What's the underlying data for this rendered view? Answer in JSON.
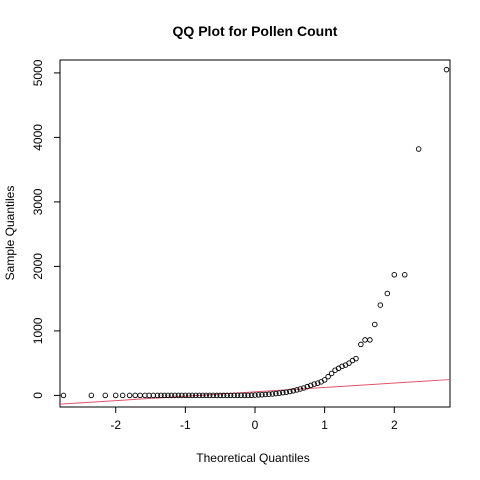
{
  "chart_data": {
    "type": "scatter",
    "title": "QQ Plot for Pollen Count",
    "xlabel": "Theoretical Quantiles",
    "ylabel": "Sample Quantiles",
    "xlim": [
      -2.8,
      2.8
    ],
    "ylim": [
      -180,
      5200
    ],
    "x_ticks": [
      -2,
      -1,
      0,
      1,
      2
    ],
    "y_ticks": [
      0,
      1000,
      2000,
      3000,
      4000,
      5000
    ],
    "grid": false,
    "legend": "none",
    "point_style": "open-circle",
    "reference_line": {
      "color": "#DF536B",
      "intercept": 55,
      "slope": 68
    },
    "points": [
      {
        "x": -2.75,
        "y": 0
      },
      {
        "x": -2.35,
        "y": 0
      },
      {
        "x": -2.15,
        "y": 0
      },
      {
        "x": -2.0,
        "y": 0
      },
      {
        "x": -1.9,
        "y": 0
      },
      {
        "x": -1.8,
        "y": 0
      },
      {
        "x": -1.72,
        "y": 0
      },
      {
        "x": -1.65,
        "y": 0
      },
      {
        "x": -1.58,
        "y": 0
      },
      {
        "x": -1.52,
        "y": 0
      },
      {
        "x": -1.46,
        "y": 0
      },
      {
        "x": -1.4,
        "y": 0
      },
      {
        "x": -1.35,
        "y": 0
      },
      {
        "x": -1.3,
        "y": 0
      },
      {
        "x": -1.25,
        "y": 0
      },
      {
        "x": -1.2,
        "y": 0
      },
      {
        "x": -1.15,
        "y": 0
      },
      {
        "x": -1.1,
        "y": 0
      },
      {
        "x": -1.05,
        "y": 0
      },
      {
        "x": -1.0,
        "y": 0
      },
      {
        "x": -0.95,
        "y": 0
      },
      {
        "x": -0.9,
        "y": 0
      },
      {
        "x": -0.85,
        "y": 0
      },
      {
        "x": -0.8,
        "y": 0
      },
      {
        "x": -0.75,
        "y": 0
      },
      {
        "x": -0.7,
        "y": 0
      },
      {
        "x": -0.65,
        "y": 0
      },
      {
        "x": -0.6,
        "y": 0
      },
      {
        "x": -0.55,
        "y": 0
      },
      {
        "x": -0.5,
        "y": 0
      },
      {
        "x": -0.45,
        "y": 0
      },
      {
        "x": -0.4,
        "y": 0
      },
      {
        "x": -0.35,
        "y": 0
      },
      {
        "x": -0.3,
        "y": 0
      },
      {
        "x": -0.25,
        "y": 0
      },
      {
        "x": -0.2,
        "y": 0
      },
      {
        "x": -0.15,
        "y": 0
      },
      {
        "x": -0.1,
        "y": 0
      },
      {
        "x": -0.05,
        "y": 2
      },
      {
        "x": 0.0,
        "y": 5
      },
      {
        "x": 0.05,
        "y": 8
      },
      {
        "x": 0.1,
        "y": 10
      },
      {
        "x": 0.15,
        "y": 14
      },
      {
        "x": 0.2,
        "y": 18
      },
      {
        "x": 0.25,
        "y": 22
      },
      {
        "x": 0.3,
        "y": 28
      },
      {
        "x": 0.35,
        "y": 35
      },
      {
        "x": 0.4,
        "y": 42
      },
      {
        "x": 0.45,
        "y": 50
      },
      {
        "x": 0.5,
        "y": 60
      },
      {
        "x": 0.55,
        "y": 72
      },
      {
        "x": 0.6,
        "y": 85
      },
      {
        "x": 0.65,
        "y": 100
      },
      {
        "x": 0.7,
        "y": 115
      },
      {
        "x": 0.75,
        "y": 135
      },
      {
        "x": 0.8,
        "y": 155
      },
      {
        "x": 0.85,
        "y": 175
      },
      {
        "x": 0.9,
        "y": 190
      },
      {
        "x": 0.95,
        "y": 210
      },
      {
        "x": 1.0,
        "y": 240
      },
      {
        "x": 1.05,
        "y": 290
      },
      {
        "x": 1.1,
        "y": 340
      },
      {
        "x": 1.15,
        "y": 390
      },
      {
        "x": 1.2,
        "y": 420
      },
      {
        "x": 1.25,
        "y": 450
      },
      {
        "x": 1.3,
        "y": 470
      },
      {
        "x": 1.35,
        "y": 500
      },
      {
        "x": 1.4,
        "y": 540
      },
      {
        "x": 1.45,
        "y": 570
      },
      {
        "x": 1.52,
        "y": 790
      },
      {
        "x": 1.58,
        "y": 860
      },
      {
        "x": 1.65,
        "y": 860
      },
      {
        "x": 1.72,
        "y": 1100
      },
      {
        "x": 1.8,
        "y": 1400
      },
      {
        "x": 1.9,
        "y": 1580
      },
      {
        "x": 2.0,
        "y": 1870
      },
      {
        "x": 2.15,
        "y": 1870
      },
      {
        "x": 2.35,
        "y": 3820
      },
      {
        "x": 2.75,
        "y": 5050
      }
    ]
  }
}
